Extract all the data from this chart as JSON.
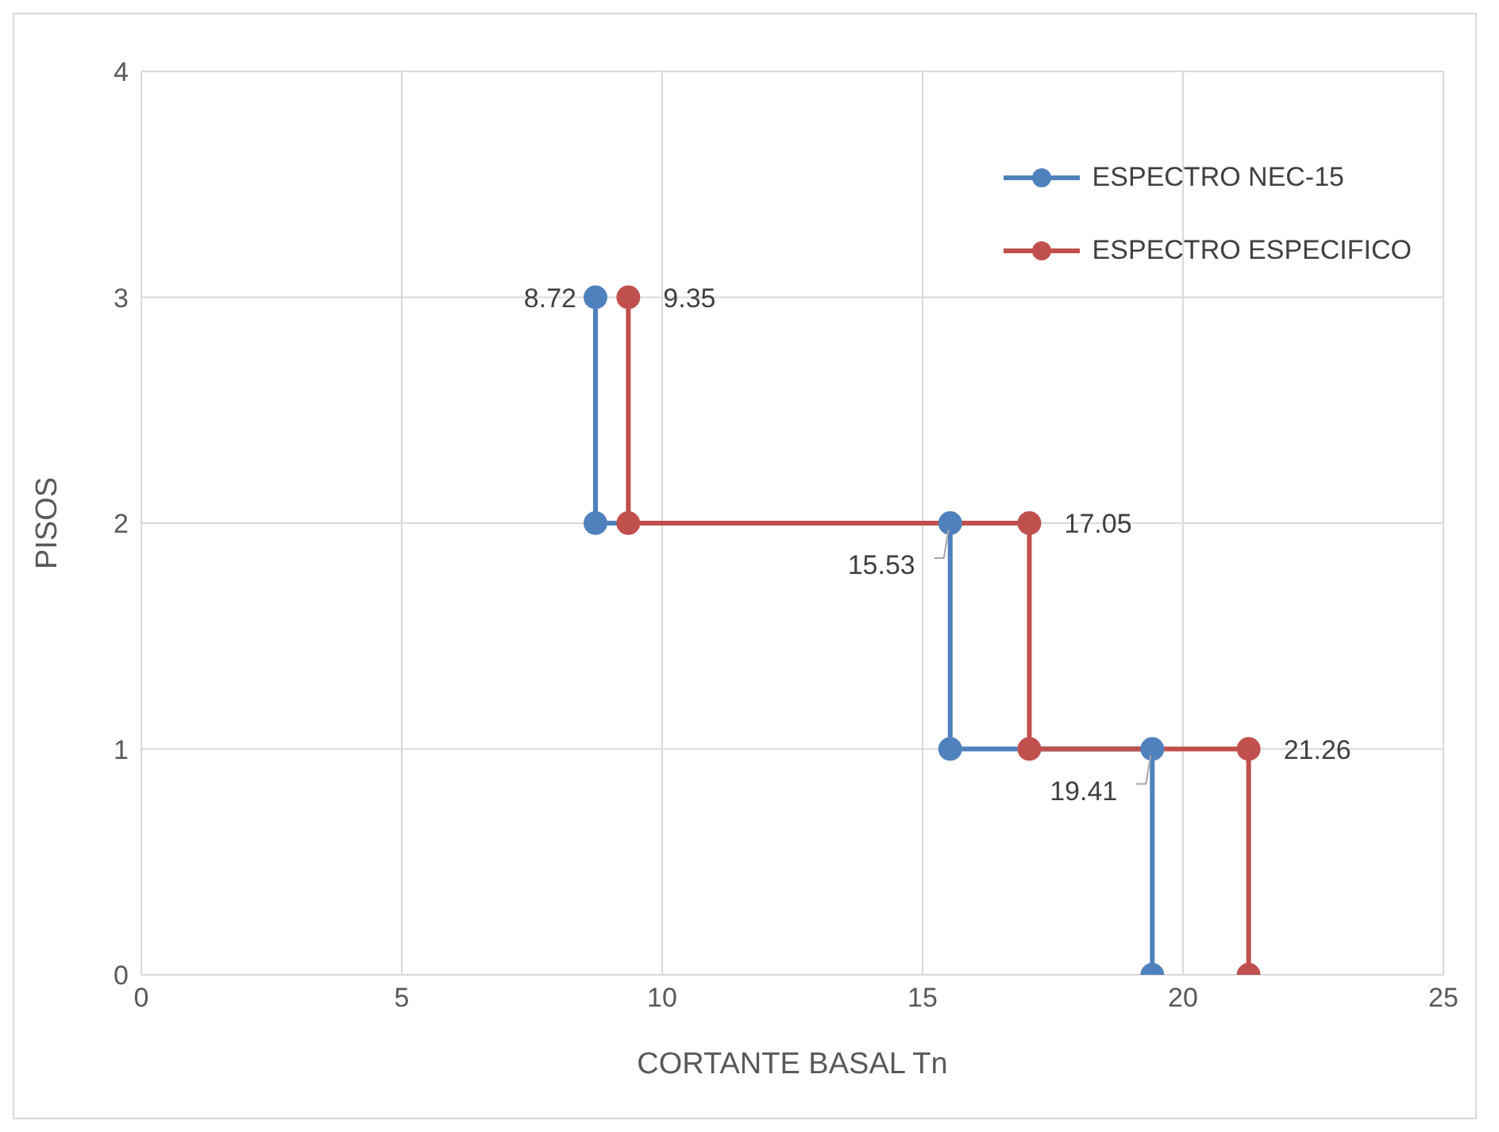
{
  "chart_data": {
    "type": "line",
    "xlabel": "CORTANTE BASAL Tn",
    "ylabel": "PISOS",
    "xlim": [
      0,
      25
    ],
    "xticks": [
      0,
      5,
      10,
      15,
      20,
      25
    ],
    "ylim": [
      0,
      4
    ],
    "yticks": [
      0,
      1,
      2,
      3,
      4
    ],
    "grid": true,
    "legend": "top right",
    "marker": "circle",
    "line_style": "solid",
    "series": [
      {
        "name": "ESPECTRO NEC-15",
        "color": "#4f81bd",
        "x": [
          8.72,
          8.72,
          15.53,
          15.53,
          19.41,
          19.41
        ],
        "values": [
          3,
          2,
          2,
          1,
          1,
          0
        ]
      },
      {
        "name": "ESPECTRO ESPECIFICO",
        "color": "#c0504d",
        "x": [
          9.35,
          9.35,
          17.05,
          17.05,
          21.26,
          21.26
        ],
        "values": [
          3,
          2,
          2,
          1,
          1,
          0
        ]
      }
    ],
    "annotations": [
      {
        "text": "8.72",
        "x": 8.72,
        "y": 3
      },
      {
        "text": "9.35",
        "x": 9.35,
        "y": 3
      },
      {
        "text": "15.53",
        "x": 15.53,
        "y": 2
      },
      {
        "text": "17.05",
        "x": 17.05,
        "y": 2
      },
      {
        "text": "19.41",
        "x": 19.41,
        "y": 1
      },
      {
        "text": "21.26",
        "x": 21.26,
        "y": 1
      }
    ]
  }
}
